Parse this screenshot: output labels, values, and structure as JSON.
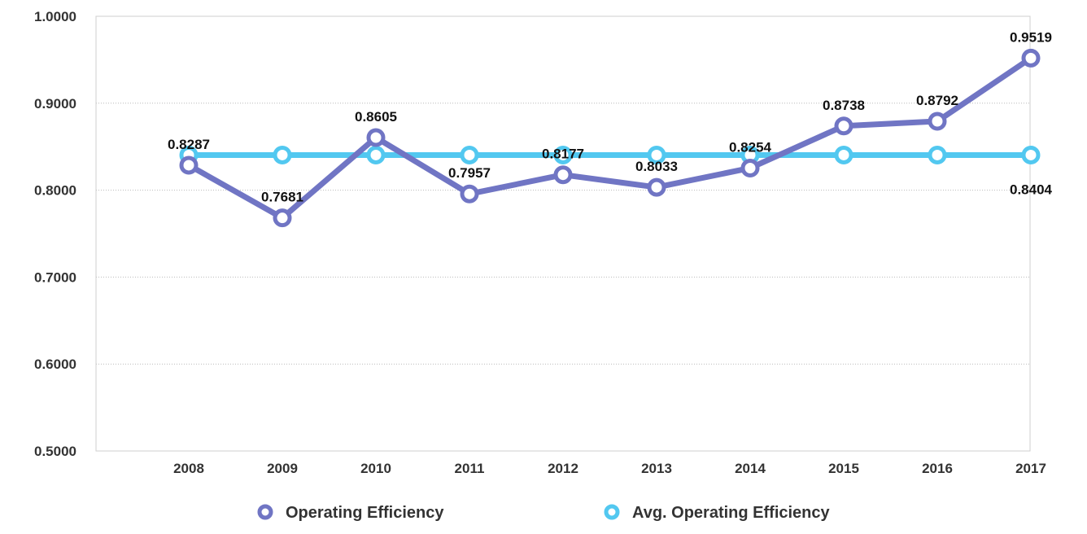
{
  "chart_data": {
    "type": "line",
    "title": "",
    "xlabel": "",
    "ylabel": "",
    "categories": [
      "2008",
      "2009",
      "2010",
      "2011",
      "2012",
      "2013",
      "2014",
      "2015",
      "2016",
      "2017"
    ],
    "ylim": [
      0.5,
      1.0
    ],
    "yticks": [
      "0.5000",
      "0.6000",
      "0.7000",
      "0.8000",
      "0.9000",
      "1.0000"
    ],
    "grid": true,
    "legend_position": "bottom",
    "series": [
      {
        "name": "Operating Efficiency",
        "color": "#7075c4",
        "values": [
          0.8287,
          0.7681,
          0.8605,
          0.7957,
          0.8177,
          0.8033,
          0.8254,
          0.8738,
          0.8792,
          0.9519
        ],
        "labels": [
          "0.8287",
          "0.7681",
          "0.8605",
          "0.7957",
          "0.8177",
          "0.8033",
          "0.8254",
          "0.8738",
          "0.8792",
          "0.9519"
        ]
      },
      {
        "name": "Avg. Operating Efficiency",
        "color": "#52c8f0",
        "values": [
          0.8404,
          0.8404,
          0.8404,
          0.8404,
          0.8404,
          0.8404,
          0.8404,
          0.8404,
          0.8404,
          0.8404
        ],
        "labels": [
          "",
          "",
          "",
          "",
          "",
          "",
          "",
          "",
          "",
          "0.8404"
        ]
      }
    ]
  }
}
